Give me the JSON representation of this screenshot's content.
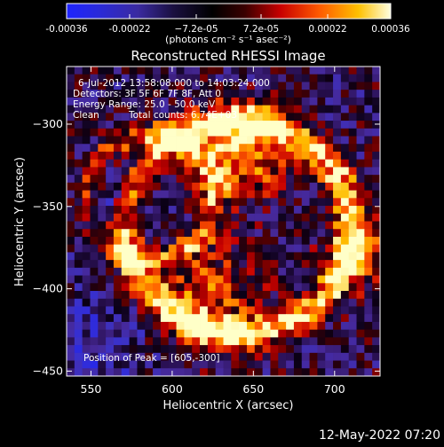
{
  "chart_data": {
    "type": "heatmap",
    "title": "Reconstructed RHESSI Image",
    "xlabel": "Heliocentric X (arcsec)",
    "ylabel": "Heliocentric Y (arcsec)",
    "xlim": [
      535,
      728
    ],
    "ylim": [
      -453,
      -265
    ],
    "x_ticks": [
      550,
      600,
      650,
      700
    ],
    "y_ticks": [
      -450,
      -400,
      -350,
      -300
    ],
    "colorbar": {
      "min": -0.00036,
      "max": 0.00036,
      "tick_values": [
        -0.00036,
        -0.00022,
        -7.2e-05,
        7.2e-05,
        0.00022,
        0.00036
      ],
      "tick_labels": [
        "-0.00036",
        "-0.00022",
        "−7.2e-05",
        "7.2e-05",
        "0.00022",
        "0.00036"
      ],
      "unit_label": "(photons cm⁻² s⁻¹ asec⁻²)"
    },
    "annotations": {
      "time_range": "6-Jul-2012 13:58:08.000 to 14:03:24.000",
      "detectors": "Detectors: 3F 5F 6F 7F 8F, Att 0",
      "energy_range": "Energy Range: 25.0 - 50.0 keV",
      "algorithm": "Clean",
      "total_counts": "Total counts: 6.74E+03",
      "peak_position": "Position of Peak = [605,-300]"
    },
    "peak": {
      "x": 605,
      "y": -300
    },
    "grid": false
  },
  "footer": {
    "timestamp": "12-May-2022 07:20"
  }
}
